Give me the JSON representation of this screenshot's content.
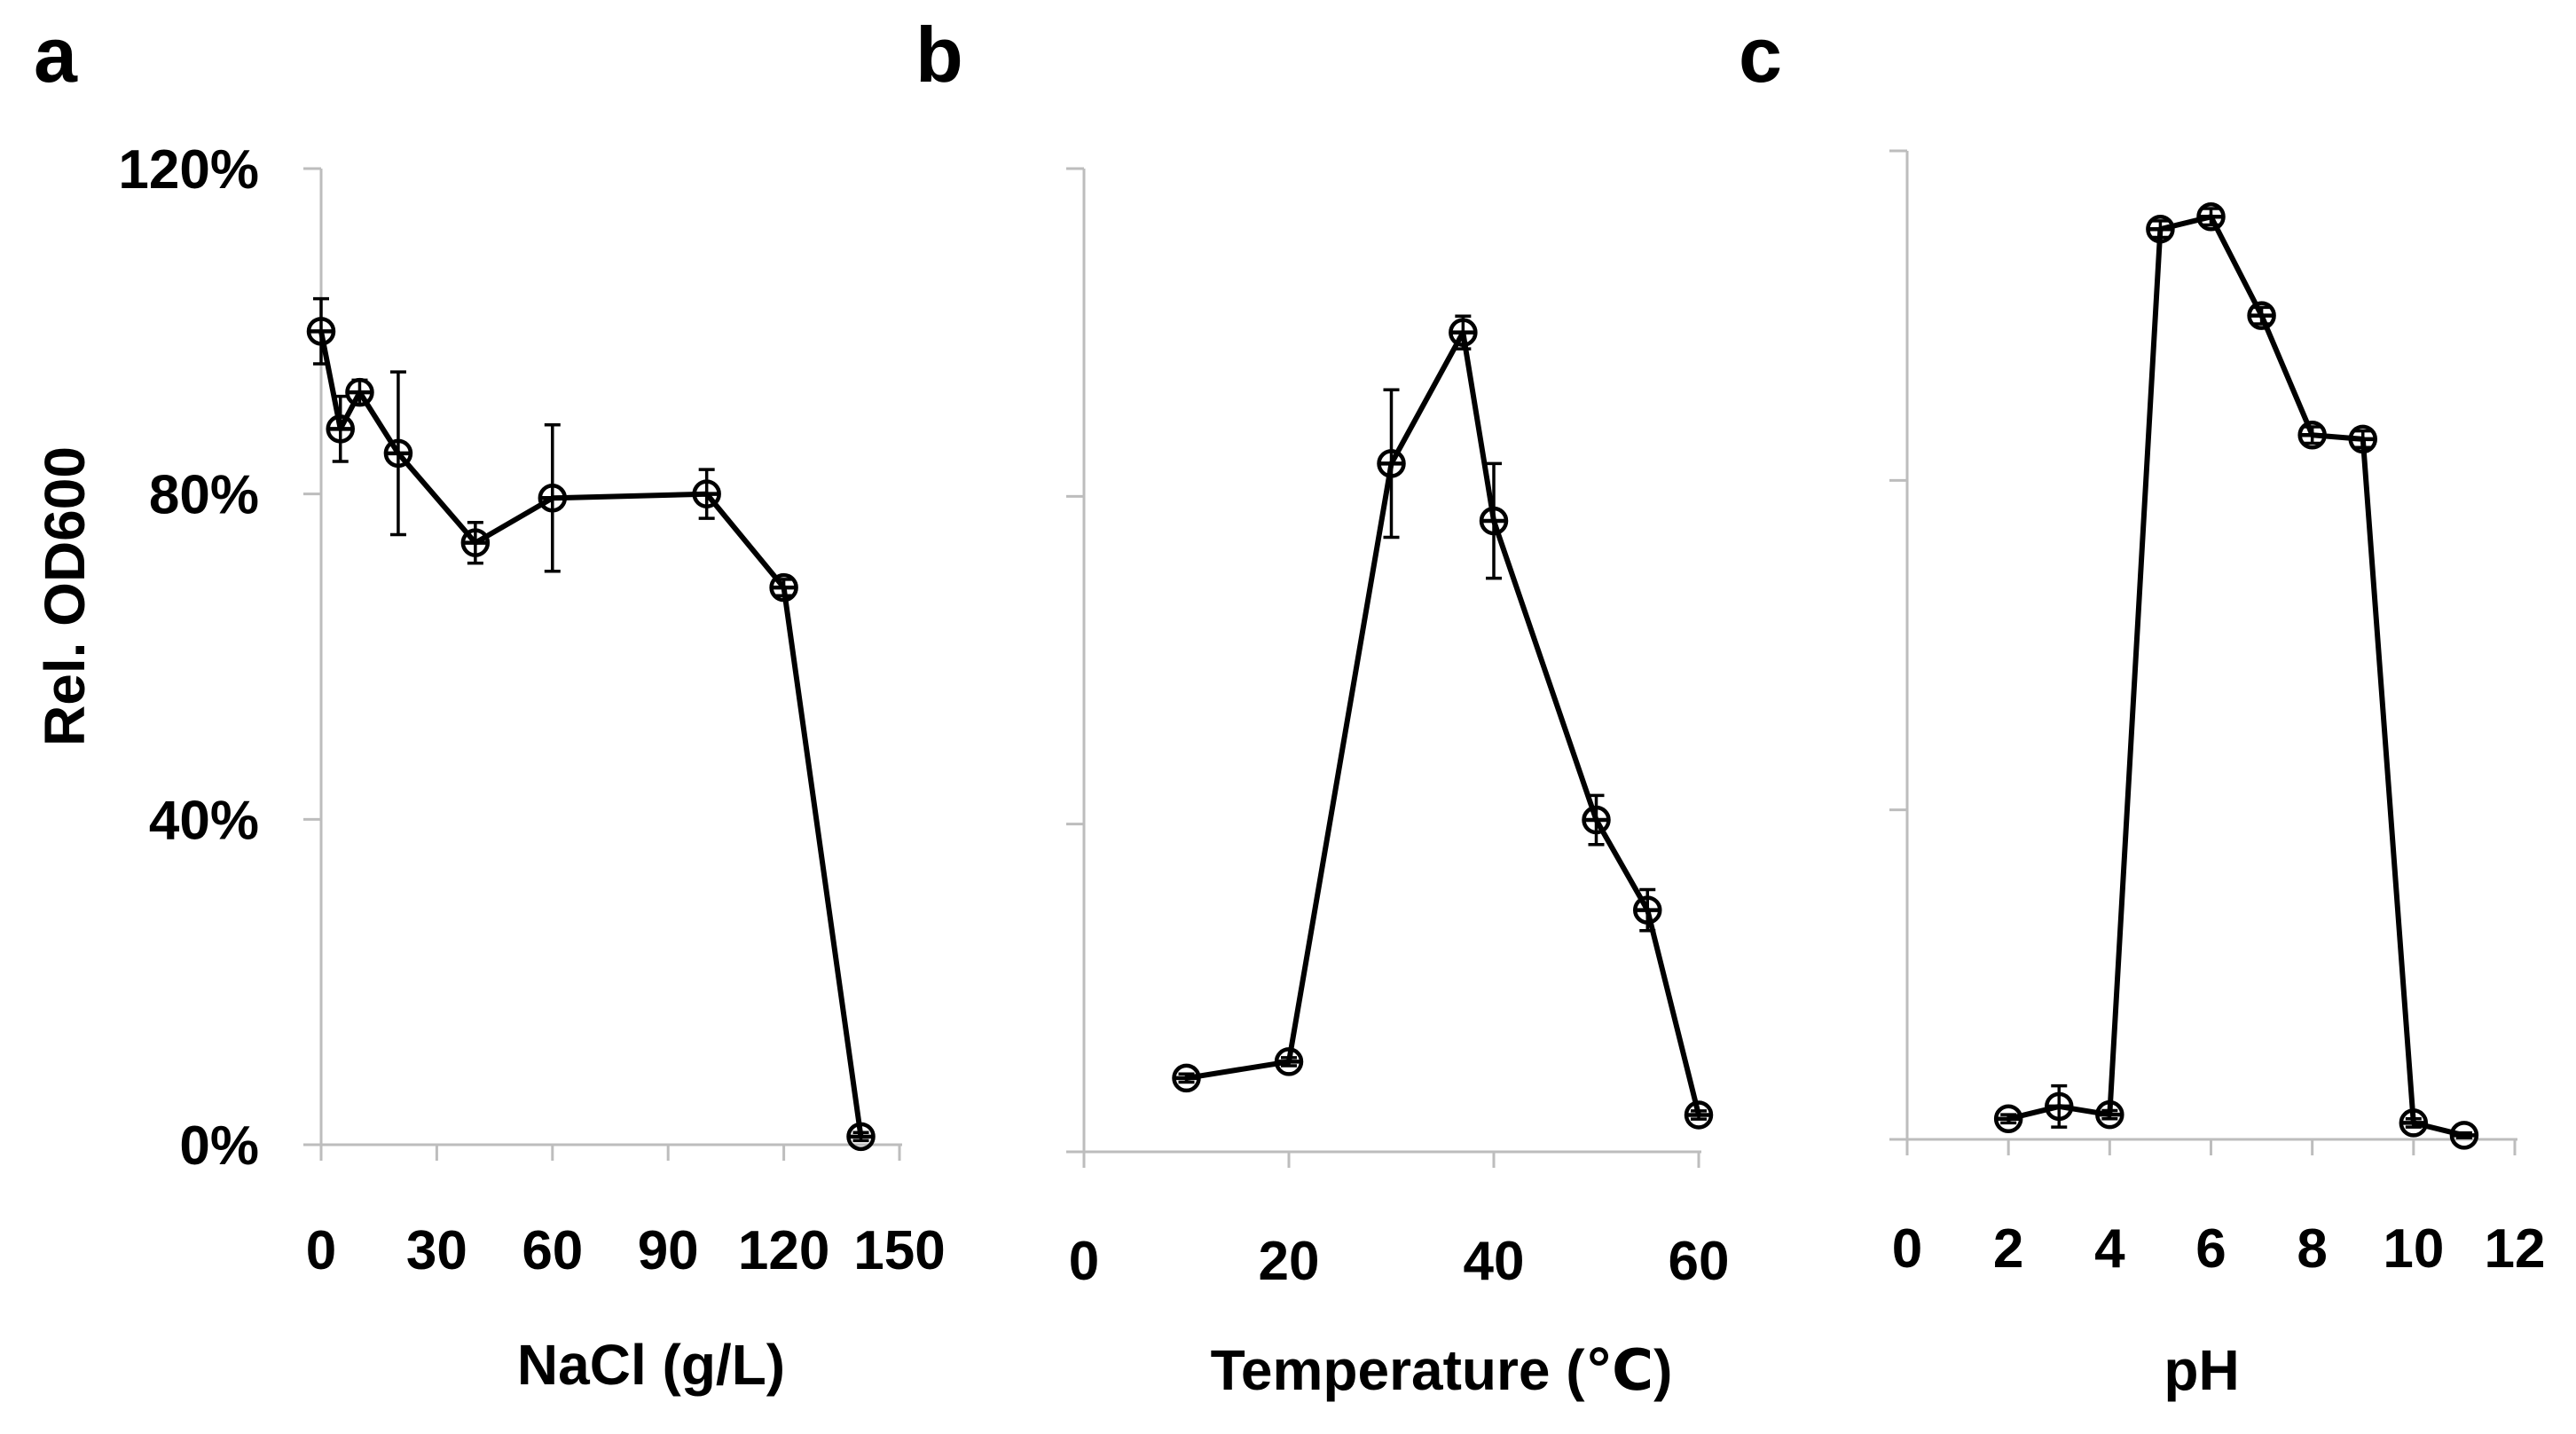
{
  "chart_data": [
    {
      "panel": "a",
      "type": "line",
      "xlabel": "NaCl (g/L)",
      "ylabel": "Rel. OD600",
      "xlim": [
        0,
        150
      ],
      "ylim": [
        0,
        120
      ],
      "x_ticks": [
        "0",
        "30",
        "60",
        "90",
        "120",
        "150"
      ],
      "y_ticks": [
        "0%",
        "40%",
        "80%",
        "120%"
      ],
      "series": [
        {
          "name": "NaCl",
          "x": [
            0,
            5,
            10,
            20,
            40,
            60,
            100,
            120,
            140
          ],
          "y": [
            100,
            88,
            92.5,
            85,
            74,
            79.5,
            80,
            68.5,
            1
          ],
          "err": [
            4,
            4,
            1.5,
            10,
            2.5,
            9,
            3,
            1,
            0.5
          ]
        }
      ]
    },
    {
      "panel": "b",
      "type": "line",
      "xlabel": "Temperature (℃)",
      "ylabel": "",
      "xlim": [
        0,
        60
      ],
      "ylim": [
        0,
        120
      ],
      "x_ticks": [
        "0",
        "20",
        "40",
        "60"
      ],
      "y_ticks": [],
      "series": [
        {
          "name": "Temperature",
          "x": [
            10,
            20,
            30,
            37,
            40,
            50,
            55,
            60
          ],
          "y": [
            9,
            11,
            84,
            100,
            77,
            40.5,
            29.5,
            4.5
          ],
          "err": [
            0.5,
            0.5,
            9,
            2,
            7,
            3,
            2.5,
            0.5
          ]
        }
      ]
    },
    {
      "panel": "c",
      "type": "line",
      "xlabel": "pH",
      "ylabel": "",
      "xlim": [
        0,
        12
      ],
      "ylim": [
        0,
        120
      ],
      "x_ticks": [
        "0",
        "2",
        "4",
        "6",
        "8",
        "10",
        "12"
      ],
      "y_ticks": [],
      "series": [
        {
          "name": "pH",
          "x": [
            2,
            3,
            4,
            5,
            6,
            7,
            8,
            9,
            10,
            11
          ],
          "y": [
            2.5,
            4,
            3,
            110.5,
            112,
            100,
            85.5,
            85,
            2,
            0.5
          ],
          "err": [
            0.5,
            2.5,
            0.5,
            1,
            1,
            1,
            1,
            1,
            0.5,
            0.3
          ]
        }
      ]
    }
  ]
}
